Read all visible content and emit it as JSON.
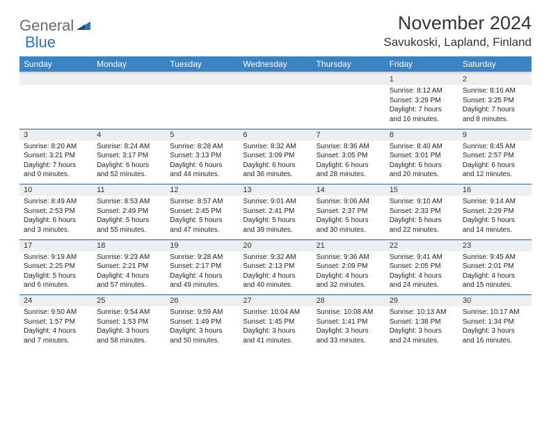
{
  "logo": {
    "word1": "General",
    "word2": "Blue"
  },
  "header": {
    "month": "November 2024",
    "location": "Savukoski, Lapland, Finland"
  },
  "colors": {
    "header_bg": "#3b84c4",
    "header_text": "#ffffff",
    "daynum_bg": "#eceef0",
    "row_divider": "#2a5a8a",
    "body_text": "#222222",
    "logo_gray": "#6a6a6a",
    "logo_blue": "#2f6fb3"
  },
  "weekdays": [
    "Sunday",
    "Monday",
    "Tuesday",
    "Wednesday",
    "Thursday",
    "Friday",
    "Saturday"
  ],
  "weeks": [
    [
      null,
      null,
      null,
      null,
      null,
      {
        "n": "1",
        "sr": "8:12 AM",
        "ss": "3:29 PM",
        "dl": "7 hours and 16 minutes."
      },
      {
        "n": "2",
        "sr": "8:16 AM",
        "ss": "3:25 PM",
        "dl": "7 hours and 8 minutes."
      }
    ],
    [
      {
        "n": "3",
        "sr": "8:20 AM",
        "ss": "3:21 PM",
        "dl": "7 hours and 0 minutes."
      },
      {
        "n": "4",
        "sr": "8:24 AM",
        "ss": "3:17 PM",
        "dl": "6 hours and 52 minutes."
      },
      {
        "n": "5",
        "sr": "8:28 AM",
        "ss": "3:13 PM",
        "dl": "6 hours and 44 minutes."
      },
      {
        "n": "6",
        "sr": "8:32 AM",
        "ss": "3:09 PM",
        "dl": "6 hours and 36 minutes."
      },
      {
        "n": "7",
        "sr": "8:36 AM",
        "ss": "3:05 PM",
        "dl": "6 hours and 28 minutes."
      },
      {
        "n": "8",
        "sr": "8:40 AM",
        "ss": "3:01 PM",
        "dl": "6 hours and 20 minutes."
      },
      {
        "n": "9",
        "sr": "8:45 AM",
        "ss": "2:57 PM",
        "dl": "6 hours and 12 minutes."
      }
    ],
    [
      {
        "n": "10",
        "sr": "8:49 AM",
        "ss": "2:53 PM",
        "dl": "6 hours and 3 minutes."
      },
      {
        "n": "11",
        "sr": "8:53 AM",
        "ss": "2:49 PM",
        "dl": "5 hours and 55 minutes."
      },
      {
        "n": "12",
        "sr": "8:57 AM",
        "ss": "2:45 PM",
        "dl": "5 hours and 47 minutes."
      },
      {
        "n": "13",
        "sr": "9:01 AM",
        "ss": "2:41 PM",
        "dl": "5 hours and 39 minutes."
      },
      {
        "n": "14",
        "sr": "9:06 AM",
        "ss": "2:37 PM",
        "dl": "5 hours and 30 minutes."
      },
      {
        "n": "15",
        "sr": "9:10 AM",
        "ss": "2:33 PM",
        "dl": "5 hours and 22 minutes."
      },
      {
        "n": "16",
        "sr": "9:14 AM",
        "ss": "2:29 PM",
        "dl": "5 hours and 14 minutes."
      }
    ],
    [
      {
        "n": "17",
        "sr": "9:19 AM",
        "ss": "2:25 PM",
        "dl": "5 hours and 6 minutes."
      },
      {
        "n": "18",
        "sr": "9:23 AM",
        "ss": "2:21 PM",
        "dl": "4 hours and 57 minutes."
      },
      {
        "n": "19",
        "sr": "9:28 AM",
        "ss": "2:17 PM",
        "dl": "4 hours and 49 minutes."
      },
      {
        "n": "20",
        "sr": "9:32 AM",
        "ss": "2:13 PM",
        "dl": "4 hours and 40 minutes."
      },
      {
        "n": "21",
        "sr": "9:36 AM",
        "ss": "2:09 PM",
        "dl": "4 hours and 32 minutes."
      },
      {
        "n": "22",
        "sr": "9:41 AM",
        "ss": "2:05 PM",
        "dl": "4 hours and 24 minutes."
      },
      {
        "n": "23",
        "sr": "9:45 AM",
        "ss": "2:01 PM",
        "dl": "4 hours and 15 minutes."
      }
    ],
    [
      {
        "n": "24",
        "sr": "9:50 AM",
        "ss": "1:57 PM",
        "dl": "4 hours and 7 minutes."
      },
      {
        "n": "25",
        "sr": "9:54 AM",
        "ss": "1:53 PM",
        "dl": "3 hours and 58 minutes."
      },
      {
        "n": "26",
        "sr": "9:59 AM",
        "ss": "1:49 PM",
        "dl": "3 hours and 50 minutes."
      },
      {
        "n": "27",
        "sr": "10:04 AM",
        "ss": "1:45 PM",
        "dl": "3 hours and 41 minutes."
      },
      {
        "n": "28",
        "sr": "10:08 AM",
        "ss": "1:41 PM",
        "dl": "3 hours and 33 minutes."
      },
      {
        "n": "29",
        "sr": "10:13 AM",
        "ss": "1:38 PM",
        "dl": "3 hours and 24 minutes."
      },
      {
        "n": "30",
        "sr": "10:17 AM",
        "ss": "1:34 PM",
        "dl": "3 hours and 16 minutes."
      }
    ]
  ],
  "labels": {
    "sunrise": "Sunrise:",
    "sunset": "Sunset:",
    "daylight": "Daylight:"
  }
}
